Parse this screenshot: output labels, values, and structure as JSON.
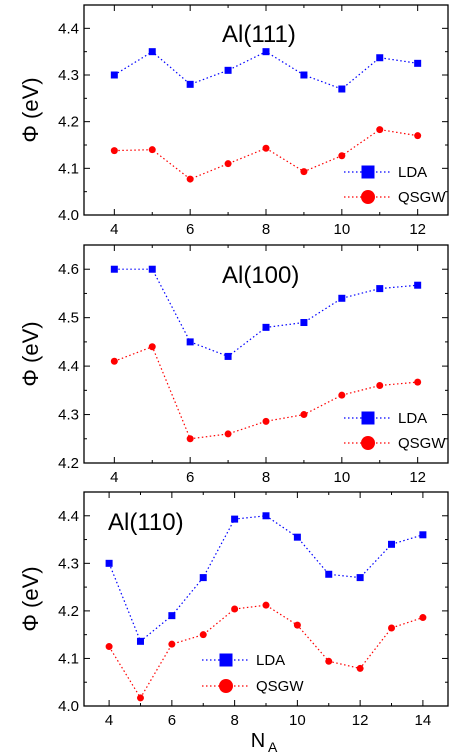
{
  "chart_data": [
    {
      "type": "line",
      "title": "Al(111)",
      "ylabel": "Φ (eV)",
      "xlabel": "",
      "xlim": [
        3.2,
        12.8
      ],
      "ylim": [
        4.0,
        4.45
      ],
      "xticks": [
        4,
        6,
        8,
        10,
        12
      ],
      "yticks": [
        4.0,
        4.1,
        4.2,
        4.3,
        4.4
      ],
      "ytick_labels": [
        "4.0",
        "4.1",
        "4.2",
        "4.3",
        "4.4"
      ],
      "legend_position": "lower-right",
      "series": [
        {
          "name": "LDA",
          "color": "#0000ff",
          "marker": "square",
          "x": [
            4,
            5,
            6,
            7,
            8,
            9,
            10,
            11,
            12
          ],
          "y": [
            4.3,
            4.35,
            4.28,
            4.31,
            4.35,
            4.3,
            4.27,
            4.337,
            4.325
          ]
        },
        {
          "name": "QSGW",
          "color": "#ff0000",
          "marker": "circle",
          "x": [
            4,
            5,
            6,
            7,
            8,
            9,
            10,
            11,
            12
          ],
          "y": [
            4.138,
            4.14,
            4.077,
            4.11,
            4.143,
            4.093,
            4.127,
            4.183,
            4.17
          ]
        }
      ]
    },
    {
      "type": "line",
      "title": "Al(100)",
      "ylabel": "Φ (eV)",
      "xlabel": "",
      "xlim": [
        3.2,
        12.8
      ],
      "ylim": [
        4.2,
        4.65
      ],
      "xticks": [
        4,
        6,
        8,
        10,
        12
      ],
      "yticks": [
        4.2,
        4.3,
        4.4,
        4.5,
        4.6
      ],
      "ytick_labels": [
        "4.2",
        "4.3",
        "4.4",
        "4.5",
        "4.6"
      ],
      "legend_position": "lower-right",
      "series": [
        {
          "name": "LDA",
          "color": "#0000ff",
          "marker": "square",
          "x": [
            4,
            5,
            6,
            7,
            8,
            9,
            10,
            11,
            12
          ],
          "y": [
            4.6,
            4.6,
            4.45,
            4.42,
            4.48,
            4.49,
            4.54,
            4.56,
            4.567
          ]
        },
        {
          "name": "QSGW",
          "color": "#ff0000",
          "marker": "circle",
          "x": [
            4,
            5,
            6,
            7,
            8,
            9,
            10,
            11,
            12
          ],
          "y": [
            4.41,
            4.44,
            4.25,
            4.26,
            4.286,
            4.3,
            4.34,
            4.36,
            4.367
          ]
        }
      ]
    },
    {
      "type": "line",
      "title": "Al(110)",
      "ylabel": "Φ (eV)",
      "xlabel": "N",
      "xlabel_sub": "A",
      "xlim": [
        3.2,
        14.8
      ],
      "ylim": [
        4.0,
        4.45
      ],
      "xticks": [
        4,
        6,
        8,
        10,
        12,
        14
      ],
      "yticks": [
        4.0,
        4.1,
        4.2,
        4.3,
        4.4
      ],
      "ytick_labels": [
        "4.0",
        "4.1",
        "4.2",
        "4.3",
        "4.4"
      ],
      "legend_position": "bottom-center",
      "series": [
        {
          "name": "LDA",
          "color": "#0000ff",
          "marker": "square",
          "x": [
            4,
            5,
            6,
            7,
            8,
            9,
            10,
            11,
            12,
            13,
            14
          ],
          "y": [
            4.3,
            4.136,
            4.19,
            4.27,
            4.393,
            4.4,
            4.355,
            4.277,
            4.27,
            4.34,
            4.36
          ]
        },
        {
          "name": "QSGW",
          "color": "#ff0000",
          "marker": "circle",
          "x": [
            4,
            5,
            6,
            7,
            8,
            9,
            10,
            11,
            12,
            13,
            14
          ],
          "y": [
            4.125,
            4.017,
            4.13,
            4.15,
            4.204,
            4.212,
            4.17,
            4.094,
            4.079,
            4.164,
            4.186
          ]
        }
      ]
    }
  ]
}
